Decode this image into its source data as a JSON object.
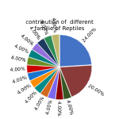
{
  "chart_data": {
    "type": "pie",
    "title": "contribution of  different familie of Reptiles",
    "values": [
      24,
      20,
      4,
      4,
      4,
      4,
      4,
      4,
      4,
      4,
      4,
      4,
      4,
      4,
      4,
      4
    ],
    "value_labels": [
      "24.00%",
      "20.00%",
      "4.00%",
      "4.00%",
      "4.00%",
      "4.00%",
      "4.00%",
      "4.00%",
      "4.00%",
      "4.00%",
      "4.00%",
      "4.00%",
      "4.00%",
      "4.00%",
      "4.00%",
      "4.00%"
    ],
    "colors": [
      "#4472C4",
      "#8B3A3A",
      "#375623",
      "#8B0000",
      "#7B68EE",
      "#D2691E",
      "#008B8B",
      "#FF8C00",
      "#1874CD",
      "#CD0000",
      "#6B8E23",
      "#008080",
      "#9370DB",
      "#1C3A5F",
      "#2E8B57",
      "#BDB76B"
    ],
    "data_labels": true
  }
}
